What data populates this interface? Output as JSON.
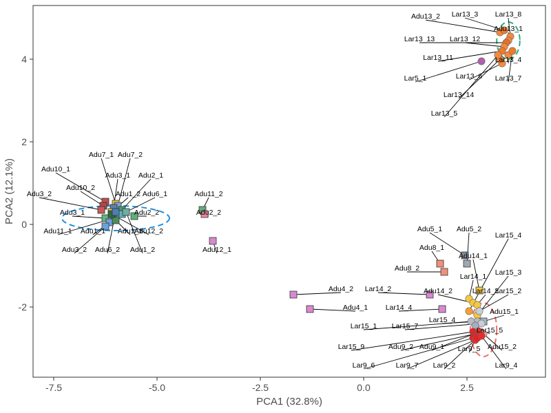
{
  "chart_data": {
    "type": "scatter",
    "xlabel": "PCA1 (32.8%)",
    "ylabel": "PCA2 (12.1%)",
    "xlim": [
      -8.0,
      4.4
    ],
    "ylim": [
      -3.7,
      5.3
    ],
    "x_ticks": [
      -7.5,
      -5.0,
      -2.5,
      0.0,
      2.5
    ],
    "x_tick_labels": [
      "-7.5",
      "-5.0",
      "-2.5",
      "0.0",
      "2.5"
    ],
    "y_ticks": [
      -2,
      0,
      2,
      4
    ],
    "y_tick_labels": [
      "-2",
      "0",
      "2",
      "4"
    ],
    "grid": false,
    "ellipses": [
      {
        "cx": -6.0,
        "cy": 0.15,
        "rx": 1.3,
        "ry": 0.3,
        "color": "#1f8fe0"
      },
      {
        "cx": 3.5,
        "cy": 4.45,
        "rx": 0.28,
        "ry": 0.45,
        "color": "#2bb07f"
      },
      {
        "cx": 2.9,
        "cy": -2.55,
        "rx": 0.32,
        "ry": 0.65,
        "color": "#f26d6d"
      }
    ],
    "points": [
      {
        "x": -6.25,
        "y": 0.55,
        "shape": "square",
        "color": "#c0504d",
        "label": "Adu10_1",
        "lx": -7.45,
        "ly": 1.25
      },
      {
        "x": -6.0,
        "y": 0.5,
        "shape": "square",
        "color": "#f0c040",
        "label": "Adu7_1",
        "lx": -6.35,
        "ly": 1.6
      },
      {
        "x": -5.95,
        "y": 0.45,
        "shape": "square",
        "color": "#7fa7d6",
        "label": "Adu7_2",
        "lx": -5.65,
        "ly": 1.6
      },
      {
        "x": -6.05,
        "y": 0.4,
        "shape": "square",
        "color": "#5e7fa8",
        "label": "Adu3_1",
        "lx": -5.95,
        "ly": 1.1
      },
      {
        "x": -5.85,
        "y": 0.35,
        "shape": "square",
        "color": "#4f9a6a",
        "label": "Adu2_1",
        "lx": -5.15,
        "ly": 1.1
      },
      {
        "x": -6.3,
        "y": 0.45,
        "shape": "square",
        "color": "#b04a48",
        "label": "Adu10_2",
        "lx": -6.85,
        "ly": 0.8
      },
      {
        "x": -6.1,
        "y": 0.3,
        "shape": "square",
        "color": "#e8c050",
        "label": "Adu1_2",
        "lx": -5.7,
        "ly": 0.65
      },
      {
        "x": -6.35,
        "y": 0.35,
        "shape": "square",
        "color": "#c85a55",
        "label": "Adu3_2",
        "lx": -7.85,
        "ly": 0.65
      },
      {
        "x": -5.55,
        "y": 0.2,
        "shape": "square",
        "color": "#5fb07a",
        "label": "Adu2_2",
        "lx": -5.25,
        "ly": 0.2
      },
      {
        "x": -5.85,
        "y": 0.25,
        "shape": "square",
        "color": "#5fb0c8",
        "label": "Adu6_1",
        "lx": -5.05,
        "ly": 0.65
      },
      {
        "x": -6.25,
        "y": 0.15,
        "shape": "square",
        "color": "#62b57c",
        "label": "Adu3_1",
        "lx": -7.05,
        "ly": 0.2
      },
      {
        "x": -6.05,
        "y": 0.15,
        "shape": "square",
        "color": "#3f8f66",
        "label": "Adu11_1",
        "lx": -7.4,
        "ly": -0.25
      },
      {
        "x": -6.15,
        "y": 0.05,
        "shape": "square",
        "color": "#6fa0e0",
        "label": "Adu1_1",
        "lx": -6.55,
        "ly": -0.25
      },
      {
        "x": -6.0,
        "y": 0.1,
        "shape": "square",
        "color": "#4a8f5a",
        "label": "Adu1_1",
        "lx": -5.65,
        "ly": -0.25
      },
      {
        "x": -6.1,
        "y": 0.25,
        "shape": "square",
        "color": "#2e6b45",
        "label": "Adu12_2",
        "lx": -5.2,
        "ly": -0.25
      },
      {
        "x": -6.25,
        "y": -0.05,
        "shape": "square",
        "color": "#6aa3dc",
        "label": "Adu3_2",
        "lx": -7.0,
        "ly": -0.7
      },
      {
        "x": -6.0,
        "y": 0.3,
        "shape": "square",
        "color": "#4a7fb8",
        "label": "Adu6_2",
        "lx": -6.2,
        "ly": -0.7
      },
      {
        "x": -5.75,
        "y": 0.3,
        "shape": "square",
        "color": "#6cb0a0",
        "label": "Adu1_2",
        "lx": -5.35,
        "ly": -0.7
      },
      {
        "x": -3.9,
        "y": 0.35,
        "shape": "square",
        "color": "#5fb07a",
        "label": "Adu11_2",
        "lx": -3.75,
        "ly": 0.65
      },
      {
        "x": -3.85,
        "y": 0.25,
        "shape": "square",
        "color": "#e88aa0",
        "label": "Adu2_2",
        "lx": -3.75,
        "ly": 0.2
      },
      {
        "x": -3.65,
        "y": -0.4,
        "shape": "square",
        "color": "#d78ad0",
        "label": "Adu12_1",
        "lx": -3.55,
        "ly": -0.7
      },
      {
        "x": 3.3,
        "y": 4.65,
        "shape": "circle",
        "color": "#f58a3c",
        "label": "Adu13_2",
        "lx": 1.5,
        "ly": 4.95
      },
      {
        "x": 3.4,
        "y": 4.7,
        "shape": "circle",
        "color": "#f07a2a",
        "label": "Lar13_3",
        "lx": 2.45,
        "ly": 5.0
      },
      {
        "x": 3.55,
        "y": 4.55,
        "shape": "circle",
        "color": "#f58a3c",
        "label": "Lar13_8",
        "lx": 3.5,
        "ly": 5.0
      },
      {
        "x": 3.5,
        "y": 4.45,
        "shape": "circle",
        "color": "#f58a3c",
        "label": "Adu13_1",
        "lx": 3.5,
        "ly": 4.65
      },
      {
        "x": 3.45,
        "y": 4.4,
        "shape": "circle",
        "color": "#e6702a",
        "label": "Lar13_13",
        "lx": 1.35,
        "ly": 4.4
      },
      {
        "x": 3.4,
        "y": 4.3,
        "shape": "circle",
        "color": "#f58a3c",
        "label": "Lar13_12",
        "lx": 2.45,
        "ly": 4.4
      },
      {
        "x": 3.35,
        "y": 4.2,
        "shape": "circle",
        "color": "#f07a2a",
        "label": "Lar13_11",
        "lx": 1.8,
        "ly": 3.95
      },
      {
        "x": 3.5,
        "y": 4.1,
        "shape": "circle",
        "color": "#f58a3c",
        "label": "Lar13_4",
        "lx": 3.5,
        "ly": 3.9
      },
      {
        "x": 3.6,
        "y": 4.2,
        "shape": "circle",
        "color": "#f07a2a",
        "label": "Lar13_7",
        "lx": 3.5,
        "ly": 3.45
      },
      {
        "x": 2.85,
        "y": 3.95,
        "shape": "circle",
        "color": "#b060b0",
        "label": "Lar5_1",
        "lx": 1.25,
        "ly": 3.45
      },
      {
        "x": 3.35,
        "y": 3.9,
        "shape": "circle",
        "color": "#f58a3c",
        "label": "Lar13_6",
        "lx": 2.55,
        "ly": 3.5
      },
      {
        "x": 3.3,
        "y": 4.0,
        "shape": "circle",
        "color": "#f07a2a",
        "label": "Lar13_14",
        "lx": 2.3,
        "ly": 3.05
      },
      {
        "x": 3.25,
        "y": 4.1,
        "shape": "circle",
        "color": "#f58a3c",
        "label": "Lar13_5",
        "lx": 1.95,
        "ly": 2.6
      },
      {
        "x": 2.45,
        "y": -0.75,
        "shape": "square",
        "color": "#7f8c99",
        "label": "Adu5_1",
        "lx": 1.6,
        "ly": -0.2
      },
      {
        "x": 2.5,
        "y": -0.95,
        "shape": "square",
        "color": "#a0a8b0",
        "label": "Adu5_2",
        "lx": 2.55,
        "ly": -0.2
      },
      {
        "x": 1.85,
        "y": -0.95,
        "shape": "square",
        "color": "#f0907a",
        "label": "Adu8_1",
        "lx": 1.65,
        "ly": -0.65
      },
      {
        "x": 1.95,
        "y": -1.15,
        "shape": "square",
        "color": "#f0907a",
        "label": "Adu8_2",
        "lx": 1.05,
        "ly": -1.15
      },
      {
        "x": 2.8,
        "y": -1.6,
        "shape": "square",
        "color": "#f5c840",
        "label": "Adu14_1",
        "lx": 2.65,
        "ly": -0.85
      },
      {
        "x": 2.55,
        "y": -1.8,
        "shape": "circle",
        "color": "#f5c840",
        "label": "Lar14_1",
        "lx": 2.65,
        "ly": -1.35
      },
      {
        "x": 2.65,
        "y": -1.9,
        "shape": "circle",
        "color": "#f5c840",
        "label": "Adu14_2",
        "lx": 1.8,
        "ly": -1.7
      },
      {
        "x": 1.6,
        "y": -1.7,
        "shape": "square",
        "color": "#d78ad0",
        "label": "Lar14_2",
        "lx": 0.35,
        "ly": -1.65
      },
      {
        "x": -1.7,
        "y": -1.7,
        "shape": "square",
        "color": "#d78ad0",
        "label": "Adu4_2",
        "lx": -0.55,
        "ly": -1.65
      },
      {
        "x": 1.9,
        "y": -2.05,
        "shape": "square",
        "color": "#d78ad0",
        "label": "Lar14_4",
        "lx": 0.85,
        "ly": -2.1
      },
      {
        "x": -1.3,
        "y": -2.05,
        "shape": "square",
        "color": "#d78ad0",
        "label": "Adu4_1",
        "lx": -0.2,
        "ly": -2.1
      },
      {
        "x": 2.75,
        "y": -1.95,
        "shape": "circle",
        "color": "#f5c840",
        "label": "Lar14_3",
        "lx": 2.95,
        "ly": -1.7
      },
      {
        "x": 2.55,
        "y": -2.1,
        "shape": "circle",
        "color": "#f5a030",
        "label": "Lar15_4",
        "lx": 3.5,
        "ly": -0.35
      },
      {
        "x": 2.75,
        "y": -2.2,
        "shape": "circle",
        "color": "#f5c840",
        "label": "Lar15_3",
        "lx": 3.5,
        "ly": -1.25
      },
      {
        "x": 2.8,
        "y": -2.1,
        "shape": "circle",
        "color": "#c8ced4",
        "label": "Lar15_2",
        "lx": 3.5,
        "ly": -1.7
      },
      {
        "x": 2.9,
        "y": -2.35,
        "shape": "square",
        "color": "#a8b8c8",
        "label": "Adu15_1",
        "lx": 3.4,
        "ly": -2.2
      },
      {
        "x": 2.75,
        "y": -2.35,
        "shape": "circle",
        "color": "#b8bcc0",
        "label": "Lar15_4",
        "lx": 1.9,
        "ly": -2.4
      },
      {
        "x": 2.85,
        "y": -2.4,
        "shape": "circle",
        "color": "#c8ced4",
        "label": "Lar15_7",
        "lx": 1.0,
        "ly": -2.55
      },
      {
        "x": 2.6,
        "y": -2.35,
        "shape": "circle",
        "color": "#b8bcc0",
        "label": "Lar15_1",
        "lx": 0.0,
        "ly": -2.55
      },
      {
        "x": 2.7,
        "y": -2.45,
        "shape": "circle",
        "color": "#a8aec0",
        "label": "Lar15_5",
        "lx": 3.05,
        "ly": -2.65
      },
      {
        "x": 2.65,
        "y": -2.6,
        "shape": "circle",
        "color": "#e82020",
        "label": "Lar15_9",
        "lx": -0.3,
        "ly": -3.05
      },
      {
        "x": 2.7,
        "y": -2.65,
        "shape": "circle",
        "color": "#e82020",
        "label": "Adu9_2",
        "lx": 0.9,
        "ly": -3.05
      },
      {
        "x": 2.8,
        "y": -2.6,
        "shape": "circle",
        "color": "#f02828",
        "label": "Adu9_1",
        "lx": 1.65,
        "ly": -3.05
      },
      {
        "x": 2.75,
        "y": -2.7,
        "shape": "circle",
        "color": "#e82020",
        "label": "Lar9_5",
        "lx": 2.55,
        "ly": -3.1
      },
      {
        "x": 2.9,
        "y": -2.65,
        "shape": "circle",
        "color": "#f5a0a0",
        "label": "Adu15_2",
        "lx": 3.35,
        "ly": -3.05
      },
      {
        "x": 2.65,
        "y": -2.75,
        "shape": "circle",
        "color": "#e82020",
        "label": "Lar9_6",
        "lx": 0.0,
        "ly": -3.5
      },
      {
        "x": 2.7,
        "y": -2.8,
        "shape": "circle",
        "color": "#f02828",
        "label": "Lar9_7",
        "lx": 1.05,
        "ly": -3.5
      },
      {
        "x": 2.75,
        "y": -2.75,
        "shape": "circle",
        "color": "#e82020",
        "label": "Lar9_2",
        "lx": 1.95,
        "ly": -3.5
      },
      {
        "x": 2.85,
        "y": -2.7,
        "shape": "circle",
        "color": "#f02828",
        "label": "Lar9_4",
        "lx": 3.45,
        "ly": -3.5
      }
    ]
  }
}
